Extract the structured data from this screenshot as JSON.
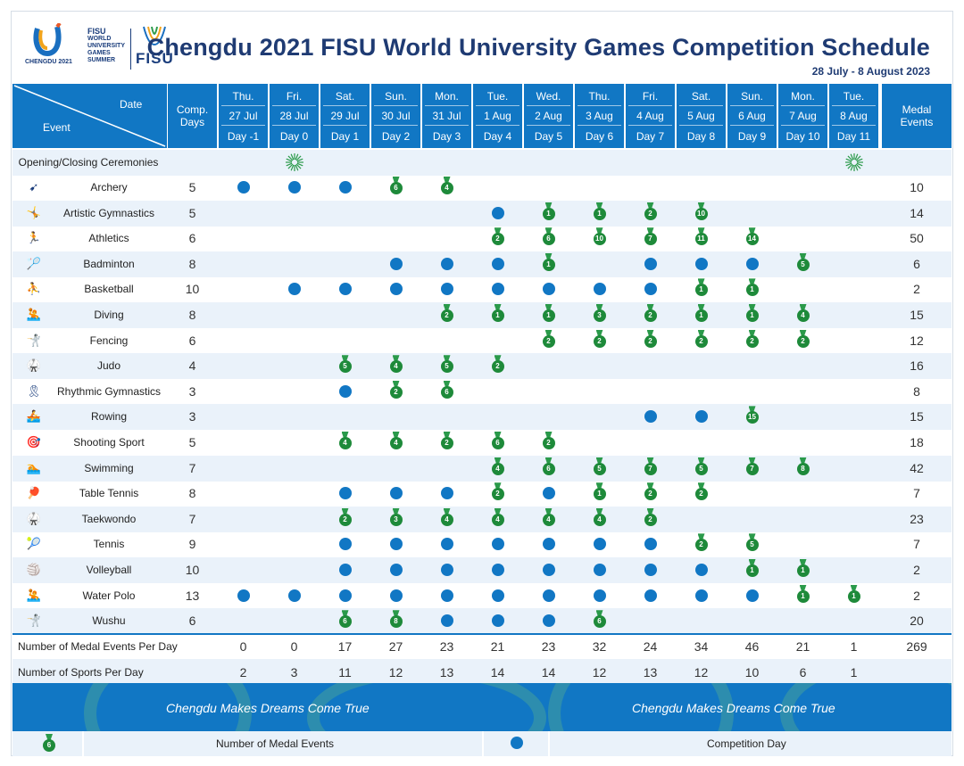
{
  "header": {
    "logo_text": [
      "FISU",
      "WORLD",
      "UNIVERSITY",
      "GAMES",
      "SUMMER"
    ],
    "logo_city": "CHENGDU 2021",
    "logo_fisu": "FISU",
    "title": "Chengdu 2021 FISU World University Games Competition Schedule",
    "date_range": "28 July - 8 August 2023"
  },
  "columns": {
    "date_label": "Date",
    "event_label": "Event",
    "comp_days_label": [
      "Comp.",
      "Days"
    ],
    "medal_events_label": [
      "Medal",
      "Events"
    ],
    "days": [
      {
        "dow": "Thu.",
        "date": "27 Jul",
        "day": "Day -1"
      },
      {
        "dow": "Fri.",
        "date": "28 Jul",
        "day": "Day 0"
      },
      {
        "dow": "Sat.",
        "date": "29 Jul",
        "day": "Day 1"
      },
      {
        "dow": "Sun.",
        "date": "30 Jul",
        "day": "Day 2"
      },
      {
        "dow": "Mon.",
        "date": "31 Jul",
        "day": "Day 3"
      },
      {
        "dow": "Tue.",
        "date": "1 Aug",
        "day": "Day 4"
      },
      {
        "dow": "Wed.",
        "date": "2 Aug",
        "day": "Day 5"
      },
      {
        "dow": "Thu.",
        "date": "3 Aug",
        "day": "Day 6"
      },
      {
        "dow": "Fri.",
        "date": "4 Aug",
        "day": "Day 7"
      },
      {
        "dow": "Sat.",
        "date": "5 Aug",
        "day": "Day 8"
      },
      {
        "dow": "Sun.",
        "date": "6 Aug",
        "day": "Day 9"
      },
      {
        "dow": "Mon.",
        "date": "7 Aug",
        "day": "Day 10"
      },
      {
        "dow": "Tue.",
        "date": "8 Aug",
        "day": "Day 11"
      }
    ]
  },
  "ceremonies": {
    "label": "Opening/Closing Ceremonies",
    "opening_day_index": 1,
    "closing_day_index": 12
  },
  "events": [
    {
      "name": "Archery",
      "icon": "archery-icon",
      "comp_days": "5",
      "medal_events": "10",
      "cells": [
        "c",
        "c",
        "c",
        "6",
        "4",
        "",
        "",
        "",
        "",
        "",
        "",
        "",
        ""
      ]
    },
    {
      "name": "Artistic Gymnastics",
      "icon": "gymnastics-icon",
      "comp_days": "5",
      "medal_events": "14",
      "cells": [
        "",
        "",
        "",
        "",
        "",
        "c",
        "1",
        "1",
        "2",
        "10",
        "",
        "",
        ""
      ]
    },
    {
      "name": "Athletics",
      "icon": "athletics-icon",
      "comp_days": "6",
      "medal_events": "50",
      "cells": [
        "",
        "",
        "",
        "",
        "",
        "2",
        "6",
        "10",
        "7",
        "11",
        "14",
        "",
        ""
      ]
    },
    {
      "name": "Badminton",
      "icon": "badminton-icon",
      "comp_days": "8",
      "medal_events": "6",
      "cells": [
        "",
        "",
        "",
        "c",
        "c",
        "c",
        "1",
        "",
        "c",
        "c",
        "c",
        "5",
        ""
      ]
    },
    {
      "name": "Basketball",
      "icon": "basketball-icon",
      "comp_days": "10",
      "medal_events": "2",
      "cells": [
        "",
        "c",
        "c",
        "c",
        "c",
        "c",
        "c",
        "c",
        "c",
        "1",
        "1",
        "",
        ""
      ]
    },
    {
      "name": "Diving",
      "icon": "diving-icon",
      "comp_days": "8",
      "medal_events": "15",
      "cells": [
        "",
        "",
        "",
        "",
        "2",
        "1",
        "1",
        "3",
        "2",
        "1",
        "1",
        "4",
        ""
      ]
    },
    {
      "name": "Fencing",
      "icon": "fencing-icon",
      "comp_days": "6",
      "medal_events": "12",
      "cells": [
        "",
        "",
        "",
        "",
        "",
        "",
        "2",
        "2",
        "2",
        "2",
        "2",
        "2",
        ""
      ]
    },
    {
      "name": "Judo",
      "icon": "judo-icon",
      "comp_days": "4",
      "medal_events": "16",
      "cells": [
        "",
        "",
        "5",
        "4",
        "5",
        "2",
        "",
        "",
        "",
        "",
        "",
        "",
        ""
      ]
    },
    {
      "name": "Rhythmic Gymnastics",
      "icon": "rhythmic-gymnastics-icon",
      "comp_days": "3",
      "medal_events": "8",
      "cells": [
        "",
        "",
        "c",
        "2",
        "6",
        "",
        "",
        "",
        "",
        "",
        "",
        "",
        ""
      ]
    },
    {
      "name": "Rowing",
      "icon": "rowing-icon",
      "comp_days": "3",
      "medal_events": "15",
      "cells": [
        "",
        "",
        "",
        "",
        "",
        "",
        "",
        "",
        "c",
        "c",
        "15",
        "",
        ""
      ]
    },
    {
      "name": "Shooting Sport",
      "icon": "shooting-icon",
      "comp_days": "5",
      "medal_events": "18",
      "cells": [
        "",
        "",
        "4",
        "4",
        "2",
        "6",
        "2",
        "",
        "",
        "",
        "",
        "",
        ""
      ]
    },
    {
      "name": "Swimming",
      "icon": "swimming-icon",
      "comp_days": "7",
      "medal_events": "42",
      "cells": [
        "",
        "",
        "",
        "",
        "",
        "4",
        "6",
        "5",
        "7",
        "5",
        "7",
        "8",
        ""
      ]
    },
    {
      "name": "Table Tennis",
      "icon": "table-tennis-icon",
      "comp_days": "8",
      "medal_events": "7",
      "cells": [
        "",
        "",
        "c",
        "c",
        "c",
        "2",
        "c",
        "1",
        "2",
        "2",
        "",
        "",
        ""
      ]
    },
    {
      "name": "Taekwondo",
      "icon": "taekwondo-icon",
      "comp_days": "7",
      "medal_events": "23",
      "cells": [
        "",
        "",
        "2",
        "3",
        "4",
        "4",
        "4",
        "4",
        "2",
        "",
        "",
        "",
        ""
      ]
    },
    {
      "name": "Tennis",
      "icon": "tennis-icon",
      "comp_days": "9",
      "medal_events": "7",
      "cells": [
        "",
        "",
        "c",
        "c",
        "c",
        "c",
        "c",
        "c",
        "c",
        "2",
        "5",
        "",
        ""
      ]
    },
    {
      "name": "Volleyball",
      "icon": "volleyball-icon",
      "comp_days": "10",
      "medal_events": "2",
      "cells": [
        "",
        "",
        "c",
        "c",
        "c",
        "c",
        "c",
        "c",
        "c",
        "c",
        "1",
        "1",
        ""
      ]
    },
    {
      "name": "Water Polo",
      "icon": "water-polo-icon",
      "comp_days": "13",
      "medal_events": "2",
      "cells": [
        "c",
        "c",
        "c",
        "c",
        "c",
        "c",
        "c",
        "c",
        "c",
        "c",
        "c",
        "1",
        "1"
      ]
    },
    {
      "name": "Wushu",
      "icon": "wushu-icon",
      "comp_days": "6",
      "medal_events": "20",
      "cells": [
        "",
        "",
        "6",
        "8",
        "c",
        "c",
        "c",
        "6",
        "",
        "",
        "",
        "",
        ""
      ]
    }
  ],
  "totals": {
    "medals_label": "Number of Medal Events Per Day",
    "medals": [
      "0",
      "0",
      "17",
      "27",
      "23",
      "21",
      "23",
      "32",
      "24",
      "34",
      "46",
      "21",
      "1"
    ],
    "medals_total": "269",
    "sports_label": "Number of Sports Per Day",
    "sports": [
      "2",
      "3",
      "11",
      "12",
      "13",
      "14",
      "14",
      "12",
      "13",
      "12",
      "10",
      "6",
      "1"
    ]
  },
  "slogan": "Chengdu Makes Dreams Come True",
  "legend": {
    "medal_sample": "6",
    "medal_label": "Number of Medal Events",
    "dot_label": "Competition Day"
  },
  "colors": {
    "primary": "#1177c4",
    "medal": "#1e8a3a",
    "band": "#eaf2fa",
    "title": "#1f3b73"
  }
}
